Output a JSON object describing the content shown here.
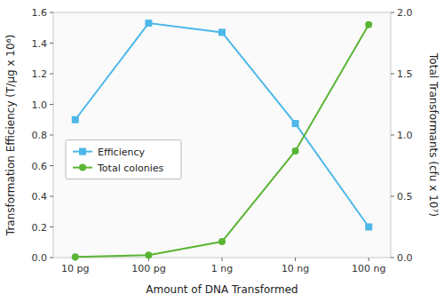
{
  "chart_data": {
    "type": "line",
    "xlabel": "Amount of DNA Transformed",
    "ylabel": "Transformation Efficiency (T/μg x 10⁶)",
    "y2label": "Total Transformants (cfu x 10⁷)",
    "categories": [
      "10 pg",
      "100 pg",
      "1 ng",
      "10 ng",
      "100 ng"
    ],
    "series": [
      {
        "name": "Efficiency",
        "color": "#4db8e8",
        "marker": "square",
        "line_style": "solid",
        "values": [
          0.9,
          1.53,
          1.47,
          0.875,
          0.2
        ]
      },
      {
        "name": "Total colonies",
        "color": "#5ab534",
        "marker": "circle",
        "line_style": "solid",
        "axis": "y2",
        "values": [
          0.005,
          0.02,
          0.13,
          0.87,
          1.9
        ]
      }
    ],
    "ylim": [
      0,
      1.6
    ],
    "yticks": [
      {
        "value": 0,
        "label": "0.0"
      },
      0.2,
      0.4,
      0.6,
      0.8,
      {
        "value": 1,
        "label": "1.0"
      },
      1.2,
      1.4,
      1.6
    ],
    "y2lim": [
      0,
      2
    ],
    "y2ticks": [
      {
        "value": 0,
        "label": "0.0"
      },
      0.5,
      {
        "value": 1,
        "label": "1.0"
      },
      1.5,
      {
        "value": 2,
        "label": "2.0"
      }
    ],
    "legend": "center left",
    "grid": false
  }
}
